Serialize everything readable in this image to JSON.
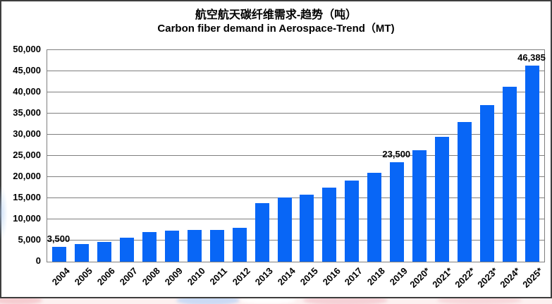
{
  "chart": {
    "title_zh": "航空航天碳纤维需求-趋势（吨）",
    "title_en": "Carbon fiber demand in Aerospace-Trend（MT)",
    "colors": {
      "bar": "#0866f6",
      "gridline": "#7f7f7f",
      "frame_border": "#3d3d3d",
      "text": "#000000",
      "watermark_pink": "#f2c3c8",
      "watermark_blue": "#bed4f5"
    }
  },
  "chart_data": {
    "type": "bar",
    "title": "航空航天碳纤维需求-趋势（吨）",
    "subtitle": "Carbon fiber demand in Aerospace-Trend（MT)",
    "xlabel": "",
    "ylabel": "",
    "ylim": [
      0,
      50000
    ],
    "ytick_step": 5000,
    "grid": true,
    "legend": false,
    "categories": [
      "2004",
      "2005",
      "2006",
      "2007",
      "2008",
      "2009",
      "2010",
      "2011",
      "2012",
      "2013",
      "2014",
      "2015",
      "2016",
      "2017",
      "2018",
      "2019",
      "2020*",
      "2021*",
      "2022*",
      "2023*",
      "2024*",
      "2025*"
    ],
    "values": [
      3500,
      4100,
      4700,
      5700,
      7000,
      7300,
      7500,
      7500,
      8000,
      13800,
      15200,
      15900,
      17500,
      19100,
      21000,
      23500,
      26320,
      29478,
      33015,
      36977,
      41414,
      46385
    ],
    "y_ticks": [
      "0",
      "5,000",
      "10,000",
      "15,000",
      "20,000",
      "25,000",
      "30,000",
      "35,000",
      "40,000",
      "45,000",
      "50,000"
    ],
    "point_labels": [
      {
        "category": "2004",
        "text": "3,500"
      },
      {
        "category": "2019",
        "text": "23,500"
      },
      {
        "category": "2025*",
        "text": "46,385"
      }
    ]
  }
}
